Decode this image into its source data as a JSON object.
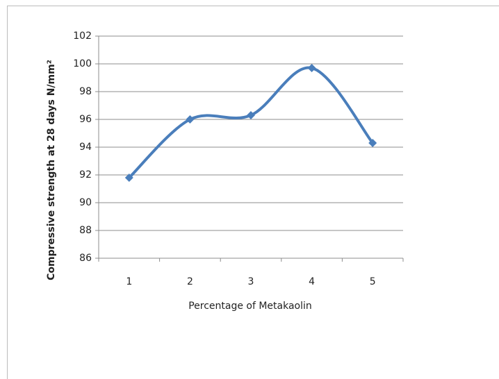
{
  "chart_data": {
    "type": "line",
    "x_label": "Percentage of  Metakaolin",
    "y_label": "Compressive strength at 28 days N/mm²",
    "categories": [
      "1",
      "2",
      "3",
      "4",
      "5"
    ],
    "values": [
      91.8,
      96.0,
      96.3,
      99.7,
      94.3
    ],
    "color": "#4a7ebb",
    "smooth": true,
    "ylim": [
      86,
      102
    ],
    "yticks": [
      86,
      88,
      90,
      92,
      94,
      96,
      98,
      100,
      102
    ],
    "grid": true
  }
}
